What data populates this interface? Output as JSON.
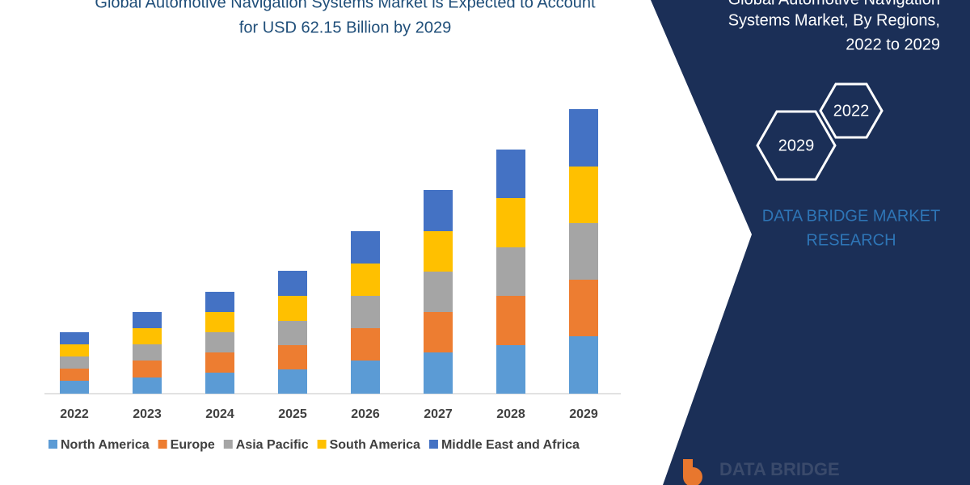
{
  "header": {
    "title_lines": [
      "Global Automotive Navigation Systems Market is Expected to Account",
      "for USD 62.15 Billion by 2029"
    ]
  },
  "chart_data": {
    "type": "bar",
    "stacked": true,
    "categories": [
      "2022",
      "2023",
      "2024",
      "2025",
      "2026",
      "2027",
      "2028",
      "2029"
    ],
    "series": [
      {
        "name": "North America",
        "color": "#5b9bd5",
        "values": [
          16,
          20,
          26,
          30,
          41,
          51,
          60,
          71
        ]
      },
      {
        "name": "Europe",
        "color": "#ed7d31",
        "values": [
          15,
          21,
          25,
          30,
          40,
          50,
          61,
          70
        ]
      },
      {
        "name": "Asia Pacific",
        "color": "#a5a5a5",
        "values": [
          15,
          20,
          25,
          30,
          40,
          50,
          60,
          70
        ]
      },
      {
        "name": "South America",
        "color": "#ffc000",
        "values": [
          15,
          20,
          25,
          31,
          40,
          50,
          61,
          70
        ]
      },
      {
        "name": "Middle East and Africa",
        "color": "#4472c4",
        "values": [
          15,
          20,
          25,
          31,
          40,
          51,
          60,
          71
        ]
      }
    ],
    "legend": "bottom"
  },
  "panel": {
    "title_lines": [
      "Global Automotive Navigation",
      "Systems Market, By Regions,",
      "2022 to 2029"
    ],
    "hexagons": [
      "2022",
      "2029"
    ],
    "brand_lines": [
      "DATA BRIDGE MARKET",
      "RESEARCH"
    ]
  },
  "logo": {
    "text": "DATA BRIDGE"
  }
}
